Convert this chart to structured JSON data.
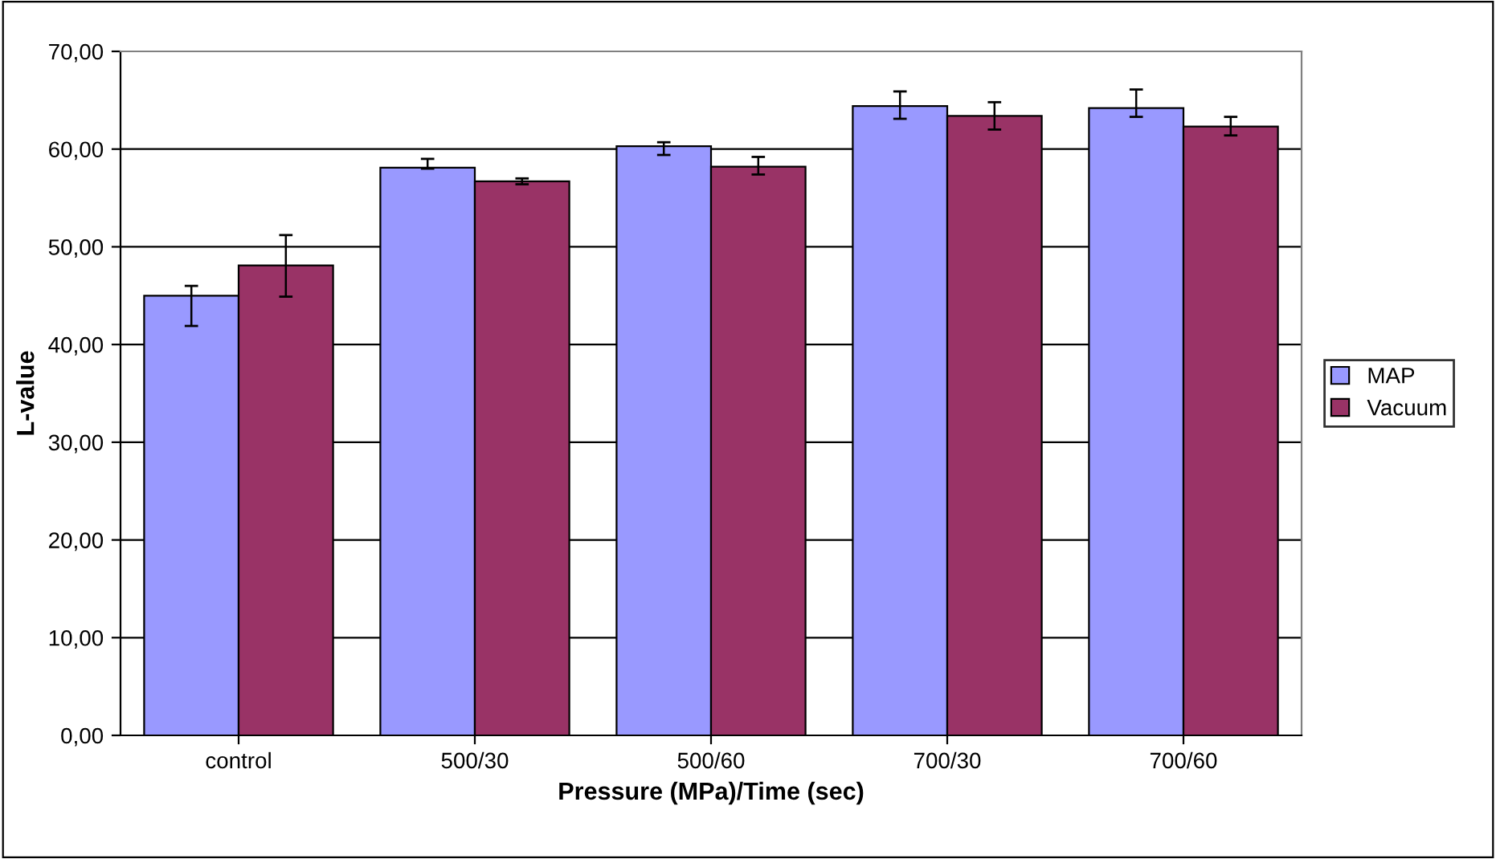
{
  "chart_data": {
    "type": "bar",
    "xlabel": "Pressure (MPa)/Time (sec)",
    "ylabel": "L-value",
    "categories": [
      "control",
      "500/30",
      "500/60",
      "700/30",
      "700/60"
    ],
    "series": [
      {
        "name": "MAP",
        "color": "#9999ff",
        "values": [
          45.0,
          58.1,
          60.3,
          64.4,
          64.2
        ],
        "errors": [
          [
            41.9,
            46.0
          ],
          [
            58.0,
            59.0
          ],
          [
            59.4,
            60.7
          ],
          [
            63.1,
            65.9
          ],
          [
            63.3,
            66.1
          ]
        ]
      },
      {
        "name": "Vacuum",
        "color": "#993366",
        "values": [
          48.1,
          56.7,
          58.2,
          63.4,
          62.3
        ],
        "errors": [
          [
            44.9,
            51.2
          ],
          [
            56.4,
            57.0
          ],
          [
            57.4,
            59.2
          ],
          [
            62.0,
            64.8
          ],
          [
            61.4,
            63.3
          ]
        ]
      }
    ],
    "ylim": [
      0,
      70
    ],
    "yticks": [
      {
        "value": 0,
        "label": "0,00"
      },
      {
        "value": 10,
        "label": "10,00"
      },
      {
        "value": 20,
        "label": "20,00"
      },
      {
        "value": 30,
        "label": "30,00"
      },
      {
        "value": 40,
        "label": "40,00"
      },
      {
        "value": 50,
        "label": "50,00"
      },
      {
        "value": 60,
        "label": "60,00"
      },
      {
        "value": 70,
        "label": "70,00"
      }
    ],
    "grid": "y",
    "legend": "right"
  }
}
